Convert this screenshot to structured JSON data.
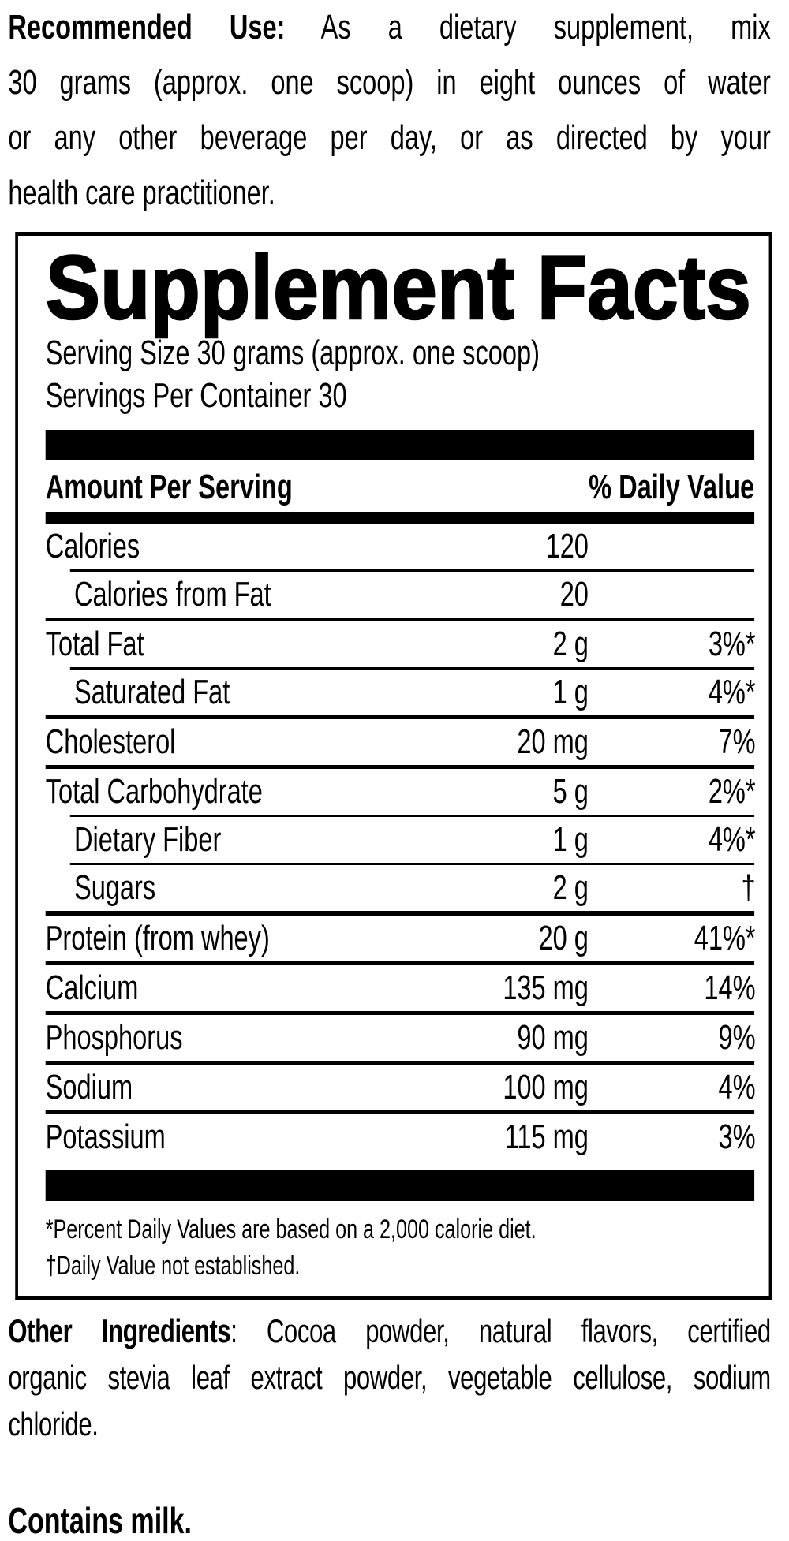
{
  "recommended_use": {
    "lead": "Recommended Use:",
    "line1_rest": " As a dietary supplement, mix",
    "line2": "30 grams (approx. one scoop) in eight ounces of water",
    "line3": "or any other beverage per day, or as directed by your",
    "line4": "health care practitioner."
  },
  "supplement_facts": {
    "title": "Supplement Facts",
    "serving_size": "Serving Size 30 grams (approx. one scoop)",
    "servings_per_container": "Servings Per Container 30",
    "header": {
      "amount_per_serving": "Amount Per Serving",
      "daily_value": "% Daily Value"
    },
    "rows": [
      {
        "name": "Calories",
        "amount": "120",
        "dv": "",
        "rule_above": "none",
        "indent": false
      },
      {
        "name": "Calories from Fat",
        "amount": "20",
        "dv": "",
        "rule_above": "indent",
        "indent": true
      },
      {
        "name": "Total Fat",
        "amount": "2 g",
        "dv": "3%*",
        "rule_above": "full",
        "indent": false
      },
      {
        "name": "Saturated Fat",
        "amount": "1 g",
        "dv": "4%*",
        "rule_above": "indent",
        "indent": true
      },
      {
        "name": "Cholesterol",
        "amount": "20 mg",
        "dv": "7%",
        "rule_above": "full",
        "indent": false
      },
      {
        "name": "Total Carbohydrate",
        "amount": "5 g",
        "dv": "2%*",
        "rule_above": "full",
        "indent": false
      },
      {
        "name": "Dietary Fiber",
        "amount": "1 g",
        "dv": "4%*",
        "rule_above": "indent",
        "indent": true
      },
      {
        "name": "Sugars",
        "amount": "2 g",
        "dv": "†",
        "rule_above": "indent",
        "indent": true
      },
      {
        "name": "Protein (from whey)",
        "amount": "20 g",
        "dv": "41%*",
        "rule_above": "thick",
        "indent": false
      },
      {
        "name": "Calcium",
        "amount": "135 mg",
        "dv": "14%",
        "rule_above": "full",
        "indent": false
      },
      {
        "name": "Phosphorus",
        "amount": "90 mg",
        "dv": "9%",
        "rule_above": "full",
        "indent": false
      },
      {
        "name": "Sodium",
        "amount": "100 mg",
        "dv": "4%",
        "rule_above": "full",
        "indent": false
      },
      {
        "name": "Potassium",
        "amount": "115 mg",
        "dv": "3%",
        "rule_above": "full",
        "indent": false
      }
    ],
    "footnotes": {
      "percent": "*Percent Daily Values are based on a 2,000 calorie diet.",
      "dagger": "†Daily Value not established."
    }
  },
  "other_ingredients": {
    "lead": "Other Ingredients",
    "line1_rest": ": Cocoa powder, natural flavors, certified",
    "line2": "organic stevia leaf extract powder, vegetable cellulose, sodium",
    "line3": "chloride."
  },
  "allergen": "Contains milk."
}
